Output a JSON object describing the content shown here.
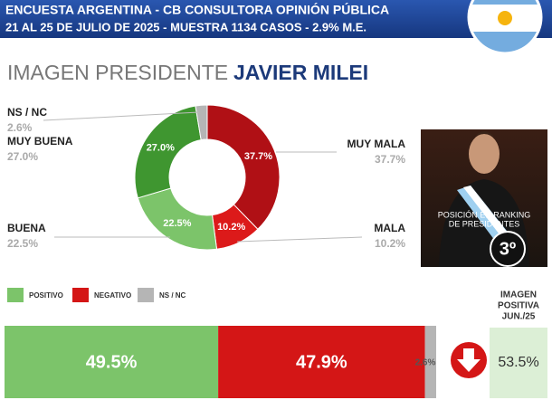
{
  "header": {
    "line1": "ENCUESTA ARGENTINA - CB CONSULTORA OPINIÓN PÚBLICA",
    "line2": "21  AL 25 DE JULIO DE 2025 - MUESTRA 1134 CASOS - 2.9% M.E."
  },
  "title": {
    "prefix": "IMAGEN PRESIDENTE",
    "name": "JAVIER MILEI"
  },
  "chart_data": [
    {
      "type": "donut",
      "categories": [
        "MUY MALA",
        "MALA",
        "BUENA",
        "MUY BUENA",
        "NS / NC"
      ],
      "values": [
        37.7,
        10.2,
        22.5,
        27.0,
        2.6
      ],
      "value_labels": [
        "37.7%",
        "10.2%",
        "22.5%",
        "27.0%",
        "2.6%"
      ],
      "colors": [
        "#b01015",
        "#dc1a1a",
        "#7cc46a",
        "#3f9630",
        "#b5b5b5"
      ]
    },
    {
      "type": "stacked-bar",
      "series": [
        {
          "name": "POSITIVO",
          "color": "#7cc46a",
          "values": [
            49.5
          ],
          "value_labels": [
            "49.5%"
          ]
        },
        {
          "name": "NEGATIVO",
          "color": "#d41616",
          "values": [
            47.9
          ],
          "value_labels": [
            "47.9%"
          ]
        },
        {
          "name": "NS / NC",
          "color": "#b5b5b5",
          "values": [
            2.6
          ],
          "value_labels": [
            "2.6%"
          ]
        }
      ]
    }
  ],
  "ranking": {
    "caption": [
      "POSICIÓN EN RANKING",
      "DE PRESIDENTES"
    ],
    "position": "3º"
  },
  "comparison": {
    "label": [
      "IMAGEN",
      "POSITIVA",
      "JUN./25"
    ],
    "value": "53.5%"
  }
}
